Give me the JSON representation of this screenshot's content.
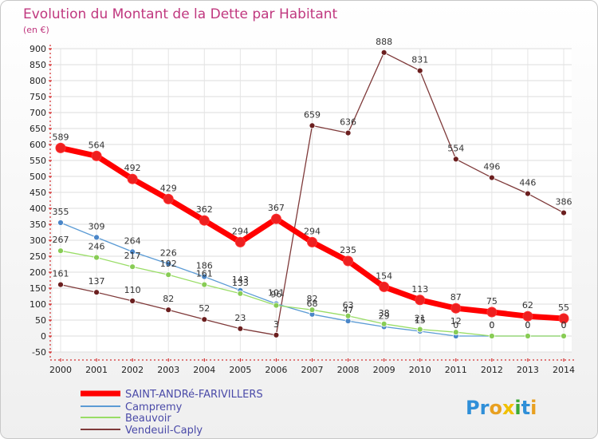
{
  "chart_data": {
    "type": "line",
    "title": "Evolution du Montant de la Dette par Habitant",
    "subtitle": "(en €)",
    "x": [
      "2000",
      "2001",
      "2002",
      "2003",
      "2004",
      "2005",
      "2006",
      "2007",
      "2008",
      "2009",
      "2010",
      "2011",
      "2012",
      "2013",
      "2014"
    ],
    "ylim": [
      -50,
      900
    ],
    "yticks": [
      -50,
      0,
      50,
      100,
      150,
      200,
      250,
      300,
      350,
      400,
      450,
      500,
      550,
      600,
      650,
      700,
      750,
      800,
      850,
      900
    ],
    "grid": true,
    "legend_position": "bottom-left",
    "series": [
      {
        "name": "SAINT-ANDRé-FARIVILLERS",
        "color": "#ff0000",
        "marker": "#ee2020",
        "values": [
          589,
          564,
          492,
          429,
          362,
          294,
          367,
          294,
          235,
          154,
          113,
          87,
          75,
          62,
          55
        ]
      },
      {
        "name": "Campremy",
        "color": "#5b9bd5",
        "marker": "#4a86c8",
        "values": [
          355,
          309,
          264,
          226,
          186,
          143,
          101,
          68,
          47,
          29,
          15,
          0,
          0,
          0,
          0
        ]
      },
      {
        "name": "Beauvoir",
        "color": "#99dd66",
        "marker": "#88cc55",
        "values": [
          267,
          246,
          217,
          192,
          161,
          133,
          96,
          82,
          63,
          38,
          21,
          12,
          0,
          0,
          0
        ]
      },
      {
        "name": "Vendeuil-Caply",
        "color": "#7f3a3a",
        "marker": "#6b1f1f",
        "values": [
          161,
          137,
          110,
          82,
          52,
          23,
          3,
          659,
          636,
          888,
          831,
          554,
          496,
          446,
          386
        ]
      }
    ]
  },
  "logo": {
    "text": "Proxiti",
    "letter_colors": [
      "#2f8fd8",
      "#2f8fd8",
      "#e8a020",
      "#f0c000",
      "#3aaa35",
      "#2f8fd8",
      "#e8a020"
    ]
  }
}
